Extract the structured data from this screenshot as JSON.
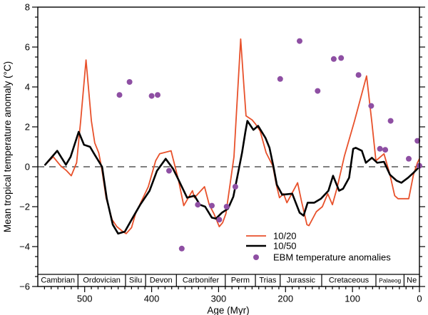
{
  "figure": {
    "y_axis_title": "Mean tropical temperature anomaly (°C)",
    "x_axis_title": "Age (Myr)"
  },
  "legend": {
    "items": [
      {
        "label": "10/20",
        "type": "line",
        "color": "#e8512b"
      },
      {
        "label": "10/50",
        "type": "line",
        "color": "#000000"
      },
      {
        "label": "EBM temperature anomalies",
        "type": "dot",
        "color": "#8e4fa3"
      }
    ]
  },
  "colors": {
    "series_10_20": "#e8512b",
    "series_10_50": "#000000",
    "ebm_dots": "#8e4fa3",
    "zero_line": "#333333",
    "axis": "#000000"
  },
  "chart_data": {
    "type": "line",
    "title": "",
    "xlabel": "Age (Myr)",
    "ylabel": "Mean tropical temperature anomaly (°C)",
    "x_axis": {
      "range": [
        570,
        0
      ],
      "reversed": true,
      "major_ticks": [
        500,
        400,
        300,
        200,
        100,
        0
      ],
      "minor_step": 10
    },
    "y_axis": {
      "range": [
        -6,
        8
      ],
      "major_ticks": [
        -6,
        -4,
        -2,
        0,
        2,
        4,
        6,
        8
      ],
      "minor_step": 0.5
    },
    "zero_line": {
      "value": 0,
      "style": "dashed"
    },
    "grid": false,
    "legend_position": "inside-bottom-center",
    "series": [
      {
        "name": "10/20",
        "color": "#e8512b",
        "width": 1.8,
        "points_age_value": [
          [
            559,
            0.1
          ],
          [
            547,
            0.5
          ],
          [
            536,
            0.05
          ],
          [
            527,
            -0.2
          ],
          [
            520,
            -0.45
          ],
          [
            512,
            0.2
          ],
          [
            506,
            2.3
          ],
          [
            498,
            5.35
          ],
          [
            490,
            2.3
          ],
          [
            485,
            1.2
          ],
          [
            479,
            0.7
          ],
          [
            475,
            0.0
          ],
          [
            468,
            -1.55
          ],
          [
            459,
            -2.65
          ],
          [
            452,
            -3.0
          ],
          [
            443,
            -3.25
          ],
          [
            438,
            -3.35
          ],
          [
            430,
            -3.05
          ],
          [
            424,
            -2.35
          ],
          [
            405,
            -1.0
          ],
          [
            394,
            0.3
          ],
          [
            388,
            0.65
          ],
          [
            371,
            0.8
          ],
          [
            360,
            -0.65
          ],
          [
            352,
            -1.95
          ],
          [
            339,
            -1.2
          ],
          [
            336,
            -1.55
          ],
          [
            321,
            -1.0
          ],
          [
            314,
            -1.9
          ],
          [
            307,
            -2.35
          ],
          [
            299,
            -3.0
          ],
          [
            294,
            -2.8
          ],
          [
            289,
            -2.35
          ],
          [
            277,
            0.5
          ],
          [
            273,
            2.9
          ],
          [
            267,
            6.4
          ],
          [
            262,
            3.95
          ],
          [
            259,
            2.55
          ],
          [
            250,
            2.35
          ],
          [
            245,
            2.15
          ],
          [
            238,
            1.8
          ],
          [
            229,
            0.7
          ],
          [
            219,
            0.05
          ],
          [
            214,
            -0.85
          ],
          [
            209,
            -1.55
          ],
          [
            203,
            -1.35
          ],
          [
            198,
            -1.8
          ],
          [
            182,
            -0.8
          ],
          [
            176,
            -1.75
          ],
          [
            168,
            -2.9
          ],
          [
            165,
            -2.95
          ],
          [
            154,
            -2.25
          ],
          [
            145,
            -2.0
          ],
          [
            137,
            -1.35
          ],
          [
            130,
            -1.9
          ],
          [
            123,
            -1.05
          ],
          [
            112,
            0.55
          ],
          [
            97,
            2.3
          ],
          [
            79,
            4.55
          ],
          [
            71,
            2.2
          ],
          [
            65,
            0.3
          ],
          [
            53,
            0.65
          ],
          [
            44,
            -0.4
          ],
          [
            37,
            -1.45
          ],
          [
            32,
            -1.6
          ],
          [
            16,
            -1.6
          ],
          [
            9,
            -0.4
          ],
          [
            3,
            0.2
          ],
          [
            0,
            0.4
          ]
        ]
      },
      {
        "name": "10/50",
        "color": "#000000",
        "width": 2.6,
        "points_age_value": [
          [
            559,
            0.1
          ],
          [
            541,
            0.8
          ],
          [
            528,
            0.1
          ],
          [
            521,
            0.5
          ],
          [
            509,
            1.75
          ],
          [
            501,
            1.1
          ],
          [
            492,
            1.0
          ],
          [
            485,
            0.6
          ],
          [
            474,
            0.0
          ],
          [
            467,
            -1.6
          ],
          [
            458,
            -2.9
          ],
          [
            450,
            -3.35
          ],
          [
            440,
            -3.25
          ],
          [
            429,
            -2.6
          ],
          [
            417,
            -1.9
          ],
          [
            403,
            -1.2
          ],
          [
            392,
            -0.2
          ],
          [
            379,
            0.4
          ],
          [
            368,
            -0.1
          ],
          [
            362,
            -0.5
          ],
          [
            347,
            -1.55
          ],
          [
            336,
            -1.45
          ],
          [
            328,
            -1.9
          ],
          [
            320,
            -2.0
          ],
          [
            310,
            -2.55
          ],
          [
            304,
            -2.6
          ],
          [
            295,
            -2.3
          ],
          [
            286,
            -2.1
          ],
          [
            278,
            -1.5
          ],
          [
            272,
            -0.5
          ],
          [
            265,
            0.7
          ],
          [
            260,
            1.75
          ],
          [
            257,
            2.3
          ],
          [
            248,
            1.85
          ],
          [
            241,
            2.05
          ],
          [
            230,
            1.45
          ],
          [
            224,
            0.95
          ],
          [
            218,
            0.0
          ],
          [
            213,
            -0.9
          ],
          [
            205,
            -1.4
          ],
          [
            190,
            -1.35
          ],
          [
            179,
            -2.3
          ],
          [
            173,
            -2.45
          ],
          [
            167,
            -1.8
          ],
          [
            157,
            -1.8
          ],
          [
            147,
            -1.6
          ],
          [
            136,
            -1.2
          ],
          [
            129,
            -0.45
          ],
          [
            120,
            -1.2
          ],
          [
            114,
            -1.1
          ],
          [
            105,
            -0.55
          ],
          [
            99,
            0.9
          ],
          [
            95,
            0.95
          ],
          [
            86,
            0.8
          ],
          [
            80,
            0.2
          ],
          [
            71,
            0.45
          ],
          [
            63,
            0.2
          ],
          [
            53,
            0.25
          ],
          [
            44,
            -0.4
          ],
          [
            34,
            -0.7
          ],
          [
            27,
            -0.8
          ],
          [
            17,
            -0.55
          ],
          [
            9,
            -0.3
          ],
          [
            0,
            0.0
          ]
        ]
      }
    ],
    "scatter": {
      "name": "EBM temperature anomalies",
      "color": "#8e4fa3",
      "radius": 4,
      "points_age_value": [
        [
          448,
          3.6
        ],
        [
          433,
          4.25
        ],
        [
          400,
          3.55
        ],
        [
          391,
          3.6
        ],
        [
          374,
          -0.2
        ],
        [
          355,
          -4.1
        ],
        [
          331,
          -1.9
        ],
        [
          310,
          -1.95
        ],
        [
          299,
          -2.65
        ],
        [
          288,
          -2.0
        ],
        [
          275,
          -1.0
        ],
        [
          208,
          4.4
        ],
        [
          179,
          6.3
        ],
        [
          152,
          3.8
        ],
        [
          128,
          5.4
        ],
        [
          117,
          5.45
        ],
        [
          91,
          4.6
        ],
        [
          72,
          3.05
        ],
        [
          59,
          0.9
        ],
        [
          51,
          0.85
        ],
        [
          43,
          2.3
        ],
        [
          16,
          0.4
        ],
        [
          3,
          1.3
        ],
        [
          0,
          0.05
        ]
      ]
    },
    "periods": [
      {
        "name": "Cambrian",
        "from": 570,
        "to": 510,
        "font": 11
      },
      {
        "name": "Ordovician",
        "from": 510,
        "to": 439,
        "font": 11
      },
      {
        "name": "Silu",
        "from": 439,
        "to": 409,
        "font": 11
      },
      {
        "name": "Devon",
        "from": 409,
        "to": 363,
        "font": 11
      },
      {
        "name": "Carbonifer",
        "from": 363,
        "to": 290,
        "font": 11
      },
      {
        "name": "Perm",
        "from": 290,
        "to": 245,
        "font": 11
      },
      {
        "name": "Trias",
        "from": 245,
        "to": 208,
        "font": 11
      },
      {
        "name": "Jurassic",
        "from": 208,
        "to": 146,
        "font": 11
      },
      {
        "name": "Cretaceous",
        "from": 146,
        "to": 65,
        "font": 11
      },
      {
        "name": "Palaeog",
        "from": 65,
        "to": 23,
        "font": 8.5
      },
      {
        "name": "Ne",
        "from": 23,
        "to": 0,
        "font": 11
      }
    ]
  }
}
